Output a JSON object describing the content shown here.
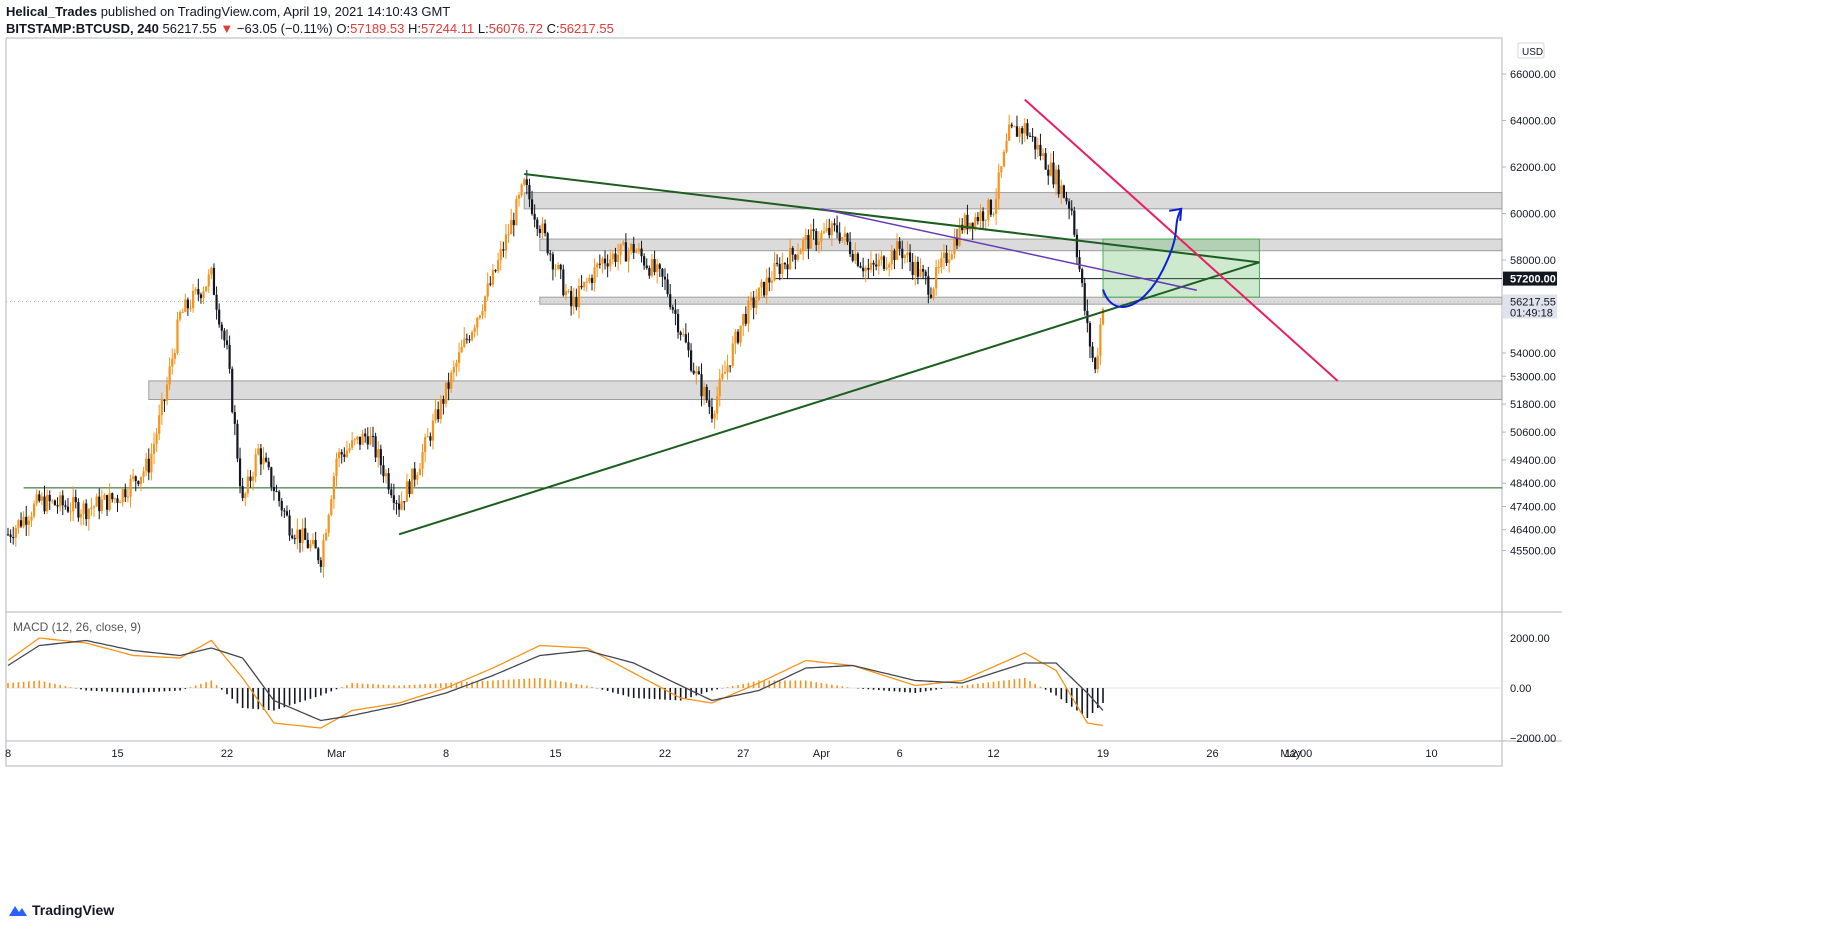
{
  "header": {
    "author": "Helical_Trades",
    "published_text": "published on TradingView.com, April 19, 2021 14:10:43 GMT",
    "symbol": "BITSTAMP:BTCUSD, 240",
    "last": "56217.55",
    "change_arrow": "▼",
    "change": "−63.05 (−0.11%)",
    "o_label": "O:",
    "o_value": "57189.53",
    "h_label": "H:",
    "h_value": "57244.11",
    "l_label": "L:",
    "l_value": "56076.72",
    "c_label": "C:",
    "c_value": "56217.55"
  },
  "footer": {
    "brand": "TradingView",
    "logo_icon": "tradingview-logo-icon"
  },
  "colors": {
    "up": "#f7931a",
    "down": "#131722",
    "triangle": "#1b5e20",
    "pink": "#e91e63",
    "purple": "#673ab7",
    "arrow": "#0d1fd6",
    "zone": "#9e9e9e",
    "box": "#4caf50"
  },
  "chart_data": [
    {
      "type": "candlestick",
      "currency_badge": "USD",
      "ylim": [
        44800,
        67500
      ],
      "y_ticks": [
        "66000.00",
        "64000.00",
        "62000.00",
        "60000.00",
        "58000.00",
        "54000.00",
        "53000.00",
        "51800.00",
        "50600.00",
        "49400.00",
        "48400.00",
        "47400.00",
        "46400.00",
        "45500.00"
      ],
      "x_ticks": [
        "8",
        "15",
        "22",
        "Mar",
        "8",
        "15",
        "22",
        "27",
        "Apr",
        "6",
        "12",
        "19",
        "26",
        "May",
        "12:00",
        "10"
      ],
      "price_label": "57200.00",
      "last_price_label": "56217.55",
      "countdown_label": "01:49:18",
      "anchor_closes": [
        {
          "date": "Feb 8",
          "close": 46200
        },
        {
          "date": "Feb 10",
          "close": 47600
        },
        {
          "date": "Feb 13",
          "close": 47300
        },
        {
          "date": "Feb 15",
          "close": 47800
        },
        {
          "date": "Feb 17",
          "close": 49200
        },
        {
          "date": "Feb 18",
          "close": 52000
        },
        {
          "date": "Feb 19",
          "close": 55600
        },
        {
          "date": "Feb 21",
          "close": 57300
        },
        {
          "date": "Feb 22",
          "close": 54000
        },
        {
          "date": "Feb 23",
          "close": 47500
        },
        {
          "date": "Feb 24",
          "close": 49800
        },
        {
          "date": "Feb 26",
          "close": 46600
        },
        {
          "date": "Feb 28",
          "close": 45200
        },
        {
          "date": "Mar 1",
          "close": 49500
        },
        {
          "date": "Mar 3",
          "close": 50500
        },
        {
          "date": "Mar 5",
          "close": 47500
        },
        {
          "date": "Mar 6",
          "close": 48800
        },
        {
          "date": "Mar 9",
          "close": 54100
        },
        {
          "date": "Mar 11",
          "close": 57200
        },
        {
          "date": "Mar 13",
          "close": 61200
        },
        {
          "date": "Mar 14",
          "close": 59500
        },
        {
          "date": "Mar 16",
          "close": 56000
        },
        {
          "date": "Mar 18",
          "close": 58000
        },
        {
          "date": "Mar 20",
          "close": 58500
        },
        {
          "date": "Mar 22",
          "close": 57000
        },
        {
          "date": "Mar 24",
          "close": 53000
        },
        {
          "date": "Mar 25",
          "close": 51500
        },
        {
          "date": "Mar 27",
          "close": 55500
        },
        {
          "date": "Mar 29",
          "close": 57500
        },
        {
          "date": "Mar 31",
          "close": 58800
        },
        {
          "date": "Apr 2",
          "close": 59300
        },
        {
          "date": "Apr 4",
          "close": 57500
        },
        {
          "date": "Apr 6",
          "close": 58500
        },
        {
          "date": "Apr 8",
          "close": 56800
        },
        {
          "date": "Apr 10",
          "close": 59500
        },
        {
          "date": "Apr 12",
          "close": 60300
        },
        {
          "date": "Apr 13",
          "close": 63400
        },
        {
          "date": "Apr 14",
          "close": 63700
        },
        {
          "date": "Apr 16",
          "close": 61500
        },
        {
          "date": "Apr 17",
          "close": 60200
        },
        {
          "date": "Apr 18",
          "close": 55000
        },
        {
          "date": "Apr 18 12:00",
          "close": 53200
        },
        {
          "date": "Apr 19",
          "close": 56217.55
        }
      ],
      "zones": [
        {
          "from": 60200,
          "to": 60900
        },
        {
          "from": 58400,
          "to": 58900
        },
        {
          "from": 56100,
          "to": 56400
        },
        {
          "from": 52000,
          "to": 52800
        }
      ],
      "horizontal_lines": [
        57200,
        48200
      ],
      "triangle": [
        {
          "from": {
            "date": "Mar 13",
            "price": 61700
          },
          "to": {
            "date": "Apr 29",
            "price": 57900
          }
        },
        {
          "from": {
            "date": "Mar 5",
            "price": 46200
          },
          "to": {
            "date": "Apr 29",
            "price": 57900
          }
        }
      ],
      "pink_line": {
        "from": {
          "date": "Apr 14",
          "price": 64900
        },
        "to": {
          "date": "May 4",
          "price": 52800
        }
      },
      "purple_line": {
        "from": {
          "date": "Apr 1",
          "price": 60200
        },
        "to": {
          "date": "Apr 25",
          "price": 56700
        }
      },
      "green_box": {
        "from_date": "Apr 19",
        "to_date": "Apr 29",
        "from_price": 56400,
        "to_price": 58900
      },
      "projection_arrow": {
        "from": {
          "date": "Apr 19",
          "price": 56300
        },
        "to": {
          "date": "Apr 24",
          "price": 60200
        }
      }
    },
    {
      "type": "line",
      "title": "MACD (12, 26, close, 9)",
      "ylim": [
        -2200,
        2500
      ],
      "y_ticks": [
        "2000.00",
        "0.00",
        "−2000.00"
      ],
      "series": [
        {
          "key": "macd",
          "x": [
            "Feb 8",
            "Feb 10",
            "Feb 13",
            "Feb 16",
            "Feb 19",
            "Feb 21",
            "Feb 23",
            "Feb 25",
            "Feb 28",
            "Mar 2",
            "Mar 5",
            "Mar 8",
            "Mar 11",
            "Mar 14",
            "Mar 17",
            "Mar 20",
            "Mar 23",
            "Mar 25",
            "Mar 28",
            "Mar 31",
            "Apr 3",
            "Apr 7",
            "Apr 10",
            "Apr 14",
            "Apr 16",
            "Apr 18",
            "Apr 19"
          ],
          "values": [
            1100,
            2000,
            1800,
            1300,
            1200,
            1900,
            400,
            -1400,
            -1600,
            -900,
            -600,
            0,
            800,
            1700,
            1600,
            600,
            -400,
            -600,
            200,
            1100,
            900,
            100,
            300,
            1400,
            700,
            -1400,
            -1500
          ]
        },
        {
          "key": "signal",
          "x": [
            "Feb 8",
            "Feb 10",
            "Feb 13",
            "Feb 16",
            "Feb 19",
            "Feb 21",
            "Feb 23",
            "Feb 25",
            "Feb 28",
            "Mar 2",
            "Mar 5",
            "Mar 8",
            "Mar 11",
            "Mar 14",
            "Mar 17",
            "Mar 20",
            "Mar 23",
            "Mar 25",
            "Mar 28",
            "Mar 31",
            "Apr 3",
            "Apr 7",
            "Apr 10",
            "Apr 14",
            "Apr 16",
            "Apr 18",
            "Apr 19"
          ],
          "values": [
            900,
            1700,
            1900,
            1500,
            1300,
            1600,
            1200,
            -500,
            -1300,
            -1100,
            -700,
            -200,
            500,
            1300,
            1500,
            1000,
            100,
            -500,
            -100,
            800,
            900,
            300,
            200,
            1000,
            1000,
            -200,
            -900
          ]
        }
      ]
    }
  ]
}
